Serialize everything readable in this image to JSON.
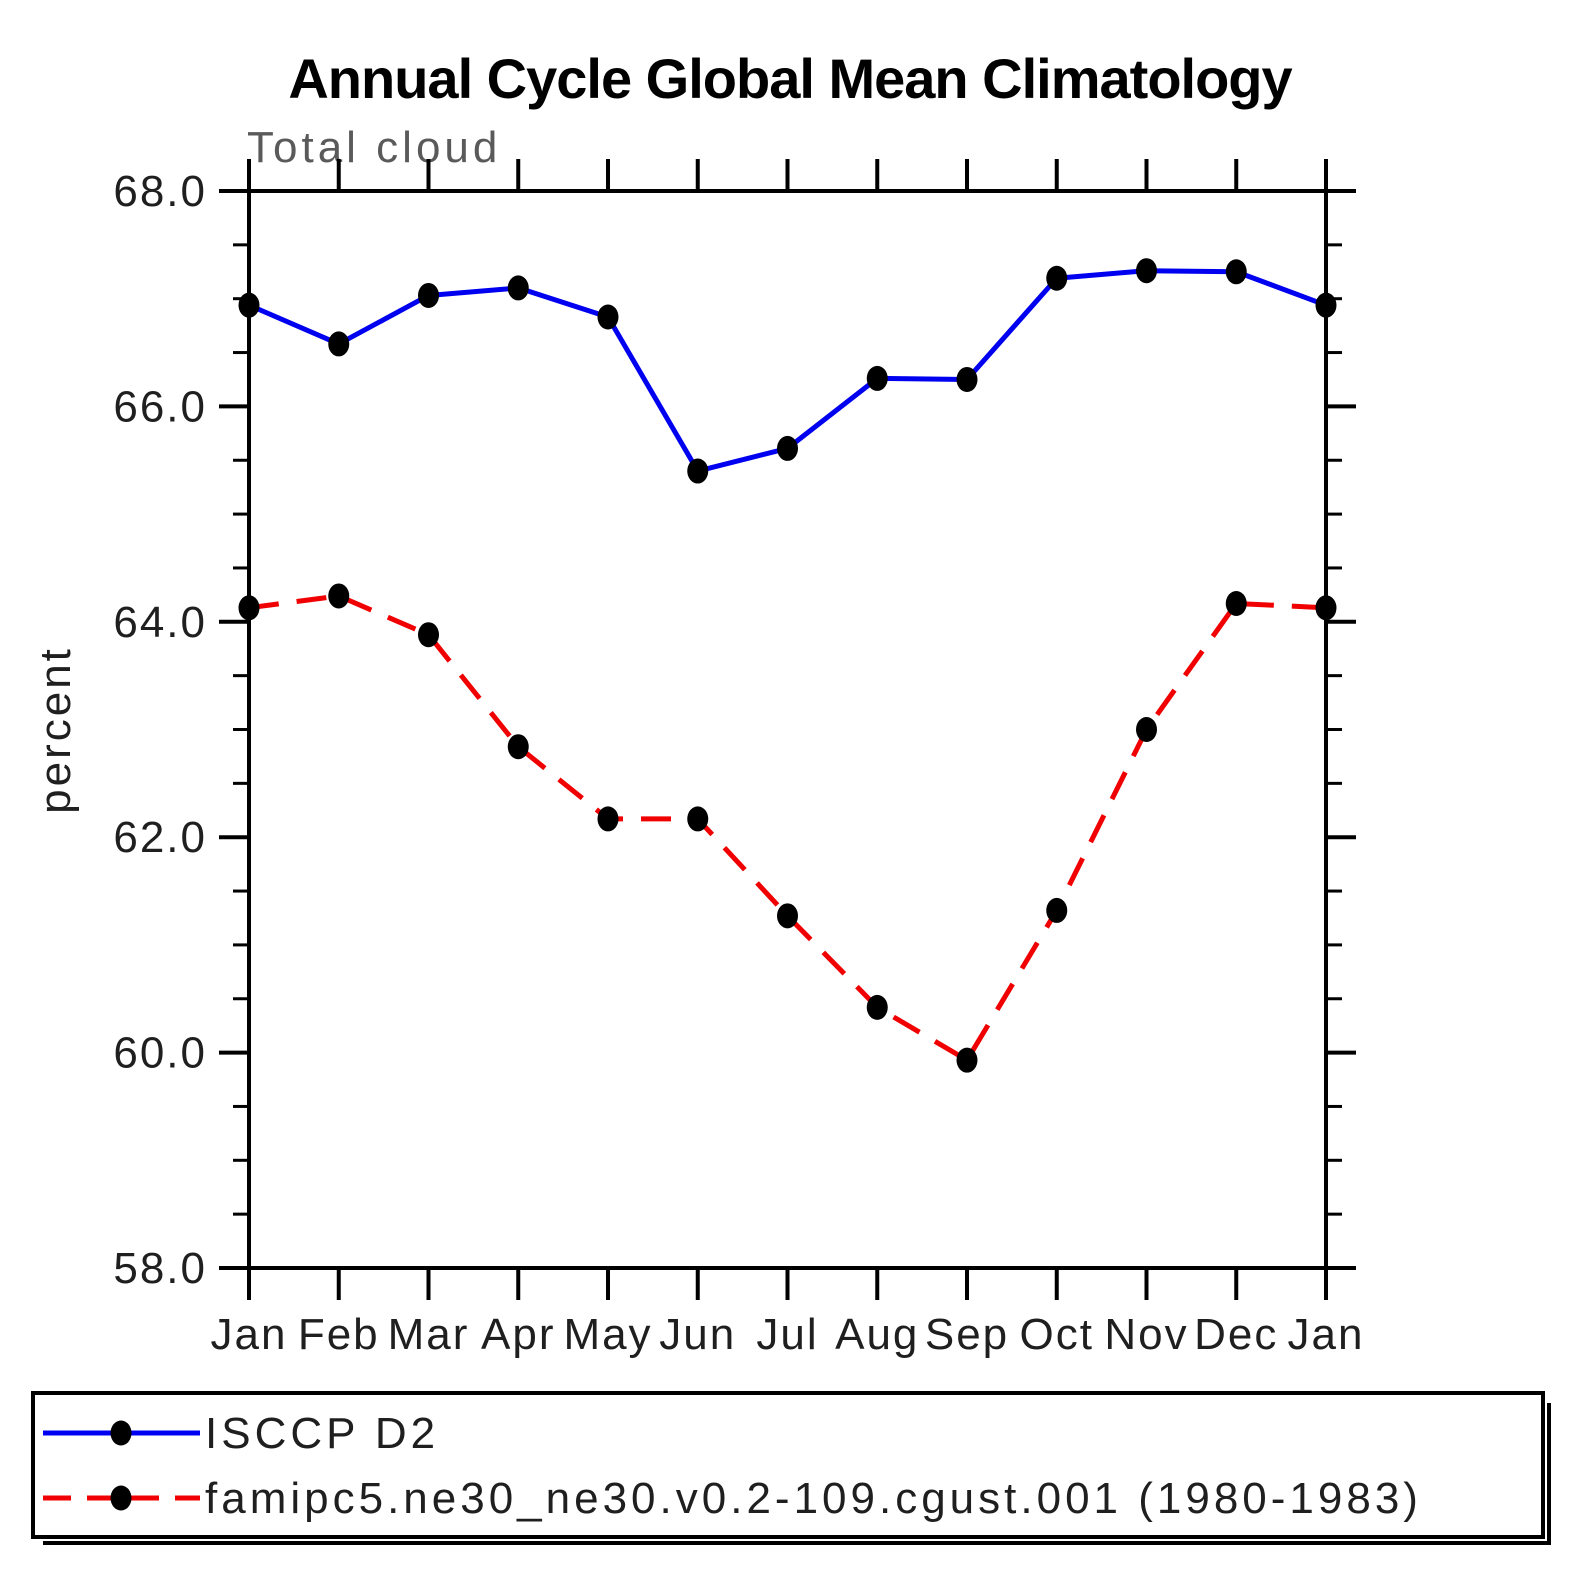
{
  "title": "Annual Cycle Global Mean Climatology",
  "subtitle": "Total cloud",
  "ylabel": "percent",
  "colors": {
    "series1": "#0000f0",
    "series2": "#f00000",
    "marker": "#000000",
    "axis": "#000000"
  },
  "chart_data": {
    "type": "line",
    "title": "Annual Cycle Global Mean Climatology",
    "subtitle": "Total cloud",
    "ylabel": "percent",
    "categories": [
      "Jan",
      "Feb",
      "Mar",
      "Apr",
      "May",
      "Jun",
      "Jul",
      "Aug",
      "Sep",
      "Oct",
      "Nov",
      "Dec",
      "Jan"
    ],
    "series": [
      {
        "name": "ISCCP D2",
        "style": "solid",
        "color": "#0000f0",
        "values": [
          66.94,
          66.58,
          67.03,
          67.1,
          66.83,
          65.4,
          65.61,
          66.26,
          66.25,
          67.19,
          67.26,
          67.25,
          66.94
        ]
      },
      {
        "name": "famipc5.ne30_ne30.v0.2-109.cgust.001 (1980-1983)",
        "style": "dashed",
        "color": "#f00000",
        "values": [
          64.13,
          64.24,
          63.88,
          62.84,
          62.17,
          62.17,
          61.27,
          60.42,
          59.93,
          61.32,
          63.0,
          64.17,
          64.13
        ]
      }
    ],
    "ylim": [
      58.0,
      68.0
    ],
    "ytick_major": [
      58.0,
      60.0,
      62.0,
      64.0,
      66.0,
      68.0
    ],
    "ytick_labels": [
      "58.0",
      "60.0",
      "62.0",
      "64.0",
      "66.0",
      "68.0"
    ],
    "ytick_minor_step": 0.5,
    "grid": false,
    "legend_position": "bottom"
  },
  "legend": {
    "entries": [
      {
        "label": "ISCCP D2"
      },
      {
        "label": "famipc5.ne30_ne30.v0.2-109.cgust.001 (1980-1983)"
      }
    ]
  }
}
